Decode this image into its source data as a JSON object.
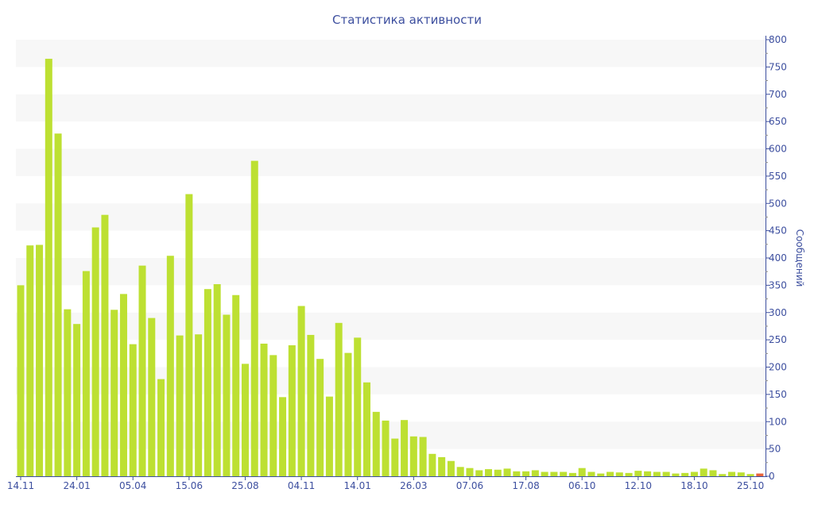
{
  "chart_data": {
    "type": "bar",
    "title": "Статистика активности",
    "xlabel": "",
    "ylabel": "Сообщений",
    "ylim": [
      0,
      800
    ],
    "ytick_step": 50,
    "y_axis_side": "right",
    "grid": "alternating horizontal bands",
    "x_tick_labels": [
      "14.11",
      "24.01",
      "05.04",
      "15.06",
      "25.08",
      "04.11",
      "14.01",
      "26.03",
      "07.06",
      "17.08",
      "06.10",
      "12.10",
      "18.10",
      "25.10"
    ],
    "x_tick_every": 6,
    "values": [
      350,
      423,
      424,
      765,
      628,
      306,
      279,
      376,
      456,
      479,
      305,
      334,
      242,
      386,
      290,
      178,
      404,
      258,
      517,
      260,
      343,
      352,
      296,
      332,
      206,
      578,
      243,
      222,
      145,
      240,
      312,
      259,
      215,
      146,
      281,
      226,
      254,
      172,
      118,
      102,
      69,
      103,
      73,
      72,
      41,
      35,
      28,
      17,
      15,
      11,
      13,
      12,
      14,
      9,
      9,
      11,
      8,
      8,
      8,
      6,
      15,
      8,
      5,
      8,
      7,
      6,
      10,
      9,
      8,
      8,
      5,
      6,
      8,
      14,
      11,
      4,
      8,
      7,
      4,
      5
    ],
    "highlight_last": true,
    "colors": {
      "bar": "#bde032",
      "highlight": "#e8643c",
      "axis": "#3d4f9f",
      "band": "#f7f7f7"
    }
  }
}
